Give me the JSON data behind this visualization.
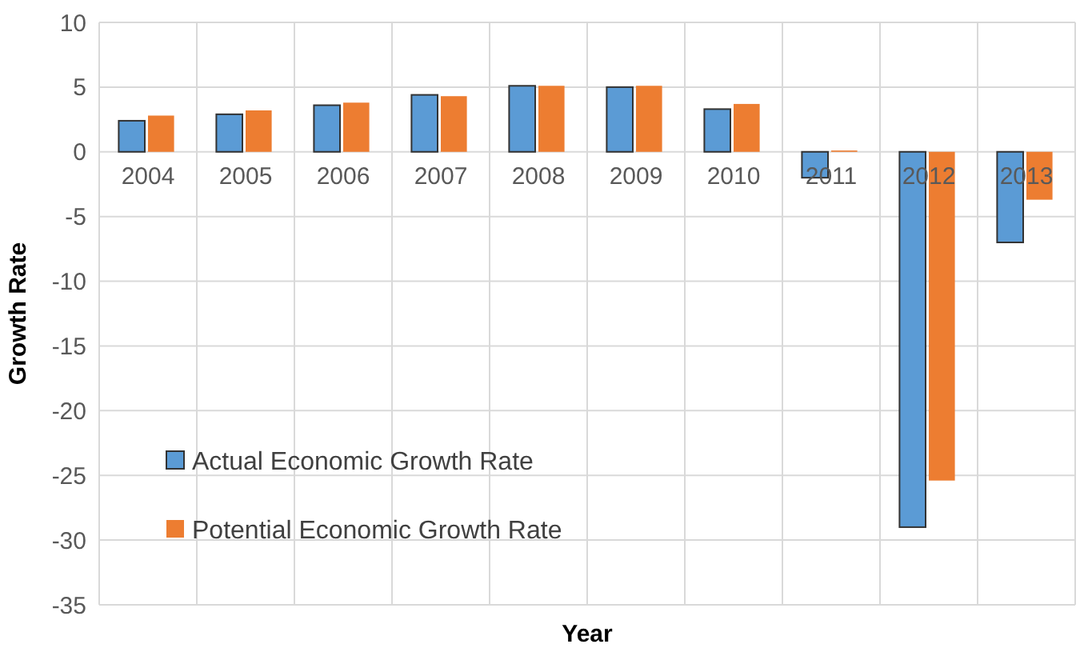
{
  "chart_data": {
    "type": "bar",
    "xlabel": "Year",
    "ylabel": "Growth Rate",
    "categories": [
      "2004",
      "2005",
      "2006",
      "2007",
      "2008",
      "2009",
      "2010",
      "2011",
      "2012",
      "2013"
    ],
    "series": [
      {
        "name": "Actual Economic Growth Rate",
        "color": "#5b9bd5",
        "values": [
          2.4,
          2.9,
          3.6,
          4.4,
          5.1,
          5.0,
          3.3,
          -2.0,
          -29.0,
          -7.0
        ]
      },
      {
        "name": "Potential Economic Growth Rate",
        "color": "#ed7d31",
        "values": [
          2.8,
          3.2,
          3.8,
          4.3,
          5.1,
          5.1,
          3.7,
          0.1,
          -25.4,
          -3.7
        ]
      }
    ],
    "ylim": [
      -35,
      10
    ],
    "yticks": [
      -35,
      -30,
      -25,
      -20,
      -15,
      -10,
      -5,
      0,
      5,
      10
    ],
    "grid": true,
    "legend": "left"
  }
}
